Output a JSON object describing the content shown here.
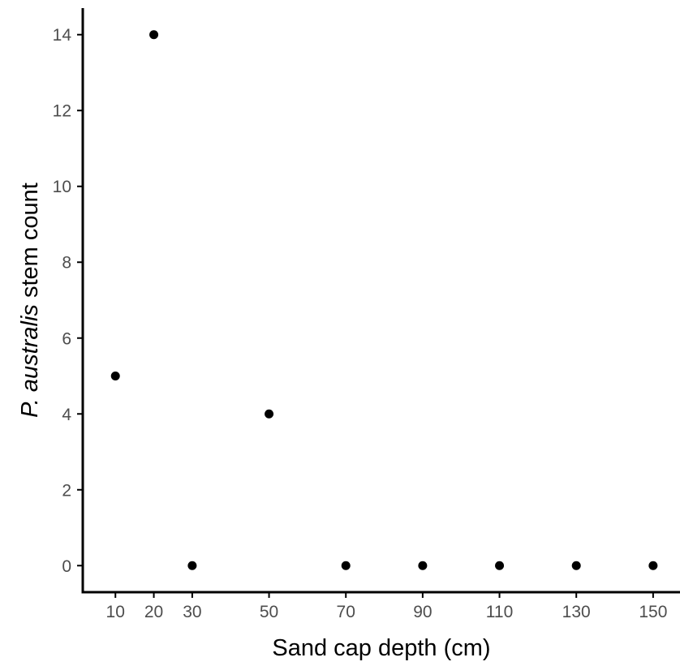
{
  "chart_data": {
    "type": "scatter",
    "title": "",
    "xlabel": "Sand cap depth (cm)",
    "ylabel_italic": "P. australis",
    "ylabel_rest": " stem count",
    "x_ticks": [
      10,
      20,
      30,
      50,
      70,
      90,
      110,
      130,
      150
    ],
    "y_ticks": [
      0,
      2,
      4,
      6,
      8,
      10,
      12,
      14
    ],
    "xlim": [
      1.5,
      157
    ],
    "ylim": [
      -0.7,
      14.7
    ],
    "grid": false,
    "points": [
      {
        "x": 10,
        "y": 5
      },
      {
        "x": 20,
        "y": 14
      },
      {
        "x": 30,
        "y": 0
      },
      {
        "x": 50,
        "y": 4
      },
      {
        "x": 70,
        "y": 0
      },
      {
        "x": 90,
        "y": 0
      },
      {
        "x": 110,
        "y": 0
      },
      {
        "x": 130,
        "y": 0
      },
      {
        "x": 150,
        "y": 0
      }
    ],
    "point_color": "#000000"
  }
}
